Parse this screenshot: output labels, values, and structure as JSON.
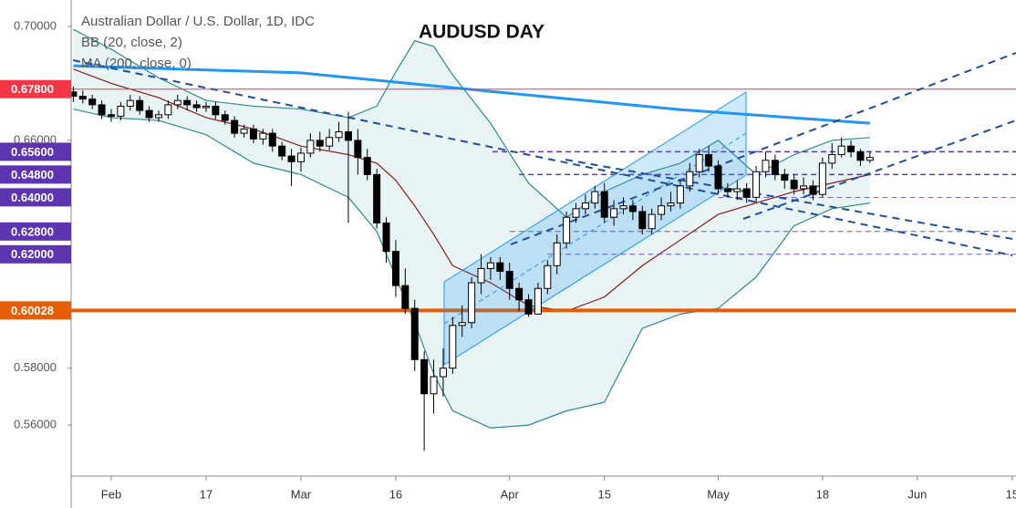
{
  "chart_data": {
    "type": "candlestick",
    "title": "AUDUSD DAY",
    "legend": [
      "Australian Dollar / U.S. Dollar, 1D, IDC",
      "BB (20, close, 2)",
      "MA (200, close, 0)"
    ],
    "up_color": "#ffffff",
    "down_color": "#000000",
    "x": [
      -4,
      -3,
      -2,
      -1,
      0,
      1,
      2,
      3,
      4,
      5,
      6,
      7,
      8,
      9,
      10,
      11,
      12,
      13,
      14,
      15,
      16,
      17,
      18,
      19,
      20,
      21,
      22,
      23,
      24,
      25,
      26,
      27,
      28,
      29,
      30,
      31,
      32,
      33,
      34,
      35,
      36,
      37,
      38,
      39,
      40,
      41,
      42,
      43,
      44,
      45,
      46,
      47,
      48,
      49,
      50,
      51,
      52,
      53,
      54,
      55,
      56,
      57,
      58,
      59,
      60,
      61,
      62,
      63,
      64,
      65,
      66,
      67,
      68,
      69,
      70,
      71,
      72,
      73,
      74,
      75,
      76,
      77,
      78,
      79,
      80
    ],
    "open": [
      0.677,
      0.6755,
      0.6745,
      0.6725,
      0.669,
      0.6685,
      0.672,
      0.674,
      0.6705,
      0.668,
      0.669,
      0.6725,
      0.674,
      0.6725,
      0.6715,
      0.672,
      0.669,
      0.667,
      0.6625,
      0.664,
      0.6605,
      0.6625,
      0.658,
      0.6545,
      0.6525,
      0.6555,
      0.66,
      0.658,
      0.661,
      0.663,
      0.66,
      0.654,
      0.648,
      0.631,
      0.621,
      0.609,
      0.601,
      0.583,
      0.571,
      0.577,
      0.58,
      0.595,
      0.596,
      0.61,
      0.615,
      0.617,
      0.614,
      0.608,
      0.604,
      0.599,
      0.608,
      0.616,
      0.624,
      0.633,
      0.636,
      0.638,
      0.642,
      0.633,
      0.636,
      0.637,
      0.635,
      0.629,
      0.634,
      0.637,
      0.638,
      0.644,
      0.649,
      0.655,
      0.651,
      0.643,
      0.642,
      0.643,
      0.64,
      0.649,
      0.653,
      0.648,
      0.646,
      0.643,
      0.644,
      0.641,
      0.652,
      0.655,
      0.658,
      0.656,
      0.653
    ],
    "high": [
      0.679,
      0.6775,
      0.676,
      0.674,
      0.671,
      0.6735,
      0.676,
      0.6755,
      0.672,
      0.6705,
      0.674,
      0.676,
      0.6755,
      0.674,
      0.6735,
      0.6735,
      0.6705,
      0.6685,
      0.6655,
      0.6655,
      0.664,
      0.664,
      0.6595,
      0.657,
      0.6575,
      0.6625,
      0.663,
      0.664,
      0.6665,
      0.67,
      0.664,
      0.657,
      0.65,
      0.633,
      0.625,
      0.615,
      0.604,
      0.586,
      0.583,
      0.587,
      0.598,
      0.602,
      0.612,
      0.62,
      0.619,
      0.619,
      0.617,
      0.61,
      0.606,
      0.61,
      0.618,
      0.627,
      0.635,
      0.638,
      0.641,
      0.644,
      0.645,
      0.639,
      0.64,
      0.639,
      0.637,
      0.636,
      0.64,
      0.642,
      0.646,
      0.652,
      0.657,
      0.658,
      0.653,
      0.645,
      0.646,
      0.645,
      0.651,
      0.656,
      0.655,
      0.65,
      0.648,
      0.647,
      0.646,
      0.654,
      0.659,
      0.661,
      0.66,
      0.657,
      0.656
    ],
    "low": [
      0.6735,
      0.673,
      0.671,
      0.6675,
      0.6665,
      0.667,
      0.6705,
      0.669,
      0.6665,
      0.6665,
      0.6675,
      0.671,
      0.6705,
      0.67,
      0.67,
      0.6675,
      0.6655,
      0.661,
      0.661,
      0.659,
      0.6585,
      0.656,
      0.653,
      0.644,
      0.649,
      0.654,
      0.656,
      0.6565,
      0.6595,
      0.631,
      0.648,
      0.646,
      0.629,
      0.617,
      0.605,
      0.599,
      0.579,
      0.551,
      0.564,
      0.57,
      0.578,
      0.591,
      0.594,
      0.606,
      0.611,
      0.611,
      0.604,
      0.6,
      0.598,
      0.599,
      0.606,
      0.613,
      0.622,
      0.631,
      0.634,
      0.636,
      0.631,
      0.63,
      0.634,
      0.632,
      0.627,
      0.627,
      0.632,
      0.635,
      0.636,
      0.642,
      0.647,
      0.649,
      0.641,
      0.64,
      0.639,
      0.638,
      0.638,
      0.647,
      0.646,
      0.643,
      0.641,
      0.641,
      0.639,
      0.64,
      0.65,
      0.654,
      0.654,
      0.651,
      0.652
    ],
    "close": [
      0.6755,
      0.6745,
      0.6725,
      0.669,
      0.6685,
      0.672,
      0.674,
      0.6705,
      0.668,
      0.669,
      0.6725,
      0.674,
      0.6725,
      0.6715,
      0.672,
      0.669,
      0.667,
      0.6625,
      0.664,
      0.6605,
      0.6625,
      0.658,
      0.6545,
      0.6525,
      0.6555,
      0.66,
      0.658,
      0.661,
      0.663,
      0.66,
      0.654,
      0.648,
      0.631,
      0.621,
      0.609,
      0.601,
      0.583,
      0.571,
      0.577,
      0.58,
      0.595,
      0.596,
      0.61,
      0.615,
      0.617,
      0.614,
      0.608,
      0.604,
      0.599,
      0.608,
      0.616,
      0.624,
      0.633,
      0.636,
      0.638,
      0.642,
      0.633,
      0.636,
      0.637,
      0.635,
      0.629,
      0.634,
      0.637,
      0.638,
      0.644,
      0.649,
      0.655,
      0.651,
      0.643,
      0.642,
      0.643,
      0.64,
      0.649,
      0.653,
      0.648,
      0.646,
      0.643,
      0.644,
      0.641,
      0.652,
      0.655,
      0.658,
      0.656,
      0.653,
      0.654
    ],
    "bands": {
      "color": "#2e8b8b",
      "fill": "#e8f4f4",
      "x": [
        -4,
        0,
        5,
        10,
        15,
        20,
        25,
        28,
        30,
        32,
        34,
        36,
        40,
        44,
        48,
        52,
        56,
        60,
        64,
        68,
        72,
        76,
        80
      ],
      "upper": [
        0.699,
        0.692,
        0.682,
        0.674,
        0.672,
        0.671,
        0.668,
        0.672,
        0.684,
        0.695,
        0.693,
        0.683,
        0.666,
        0.645,
        0.633,
        0.642,
        0.648,
        0.652,
        0.66,
        0.648,
        0.655,
        0.66,
        0.661
      ],
      "lower": [
        0.671,
        0.668,
        0.667,
        0.662,
        0.652,
        0.648,
        0.64,
        0.628,
        0.612,
        0.596,
        0.578,
        0.565,
        0.559,
        0.56,
        0.565,
        0.568,
        0.594,
        0.599,
        0.601,
        0.612,
        0.63,
        0.636,
        0.638
      ]
    },
    "overlays": [
      {
        "color": "#8b1a1a",
        "width": 1.2,
        "x": [
          -4,
          0,
          5,
          10,
          15,
          20,
          25,
          28,
          30,
          32,
          34,
          36,
          40,
          44,
          48,
          52,
          56,
          60,
          64,
          68,
          72,
          76,
          80
        ],
        "values": [
          0.685,
          0.68,
          0.675,
          0.668,
          0.664,
          0.658,
          0.655,
          0.652,
          0.646,
          0.637,
          0.627,
          0.616,
          0.61,
          0.602,
          0.6,
          0.605,
          0.616,
          0.625,
          0.634,
          0.638,
          0.642,
          0.645,
          0.648
        ]
      },
      {
        "color": "#2196f3",
        "width": 3,
        "x": [
          -4,
          20,
          40,
          60,
          80
        ],
        "values": [
          0.6862,
          0.6837,
          0.6772,
          0.6708,
          0.666
        ]
      }
    ],
    "levels": [
      {
        "value": 0.678,
        "label": "0.67800",
        "color": "#f23645",
        "width": 1,
        "dash": false
      },
      {
        "value": 0.656,
        "label": "0.65600",
        "color": "#5e35b1",
        "width": 1.5,
        "dash": true,
        "from": 40.2
      },
      {
        "value": 0.648,
        "label": "0.64800",
        "color": "#5e35b1",
        "width": 1.5,
        "dash": true,
        "from": 43
      },
      {
        "value": 0.64,
        "label": "0.64000",
        "color": "#5e35b1",
        "width": 0.8,
        "dash": true,
        "from": 64
      },
      {
        "value": 0.628,
        "label": "0.62800",
        "color": "#5e35b1",
        "width": 0.8,
        "dash": true,
        "from": 42
      },
      {
        "value": 0.62,
        "label": "0.62000",
        "color": "#5e35b1",
        "width": 0.8,
        "dash": true,
        "from": 46
      },
      {
        "value": 0.60028,
        "label": "0.60028",
        "color": "#e65c00",
        "width": 4,
        "dash": false
      }
    ],
    "xlim": [
      -4.23,
      95.4
    ],
    "ylim": [
      0.5421,
      0.7093
    ],
    "yticks": [
      {
        "value": 0.7,
        "label": "0.70000"
      },
      {
        "value": 0.66,
        "label": "0.66000"
      },
      {
        "value": 0.58,
        "label": "0.58000"
      },
      {
        "value": 0.56,
        "label": "0.56000"
      }
    ],
    "xticks": [
      {
        "value": 0,
        "label": "Feb"
      },
      {
        "value": 10,
        "label": "17"
      },
      {
        "value": 20,
        "label": "Mar"
      },
      {
        "value": 30,
        "label": "16"
      },
      {
        "value": 42,
        "label": "Apr"
      },
      {
        "value": 52,
        "label": "15"
      },
      {
        "value": 64,
        "label": "May"
      },
      {
        "value": 75,
        "label": "18"
      },
      {
        "value": 85,
        "label": "Jun"
      },
      {
        "value": 95,
        "label": "15"
      }
    ],
    "grid": false
  }
}
